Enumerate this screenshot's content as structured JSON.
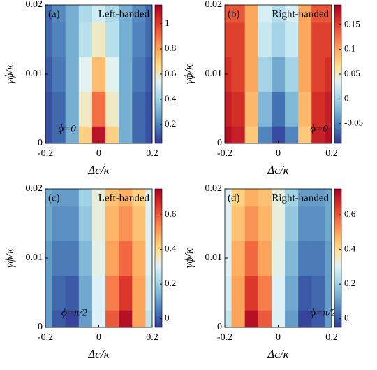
{
  "chart_data": [
    {
      "type": "heatmap",
      "panel_label": "(a)",
      "title": "Left-handed",
      "annotation": "ϕ=0",
      "x_label": "Δc/κ",
      "y_label": "γϕ/κ",
      "x": [
        -0.2,
        -0.15,
        -0.1,
        -0.05,
        0,
        0.05,
        0.1,
        0.15,
        0.2
      ],
      "y": [
        0,
        0.005,
        0.01,
        0.015,
        0.02
      ],
      "z": [
        [
          0.1,
          0.15,
          0.3,
          0.7,
          1.1,
          0.7,
          0.3,
          0.15,
          0.1
        ],
        [
          0.1,
          0.15,
          0.3,
          0.6,
          0.9,
          0.6,
          0.3,
          0.15,
          0.1
        ],
        [
          0.12,
          0.18,
          0.3,
          0.55,
          0.75,
          0.55,
          0.3,
          0.18,
          0.12
        ],
        [
          0.15,
          0.2,
          0.3,
          0.45,
          0.6,
          0.45,
          0.3,
          0.2,
          0.15
        ],
        [
          0.15,
          0.22,
          0.3,
          0.42,
          0.5,
          0.42,
          0.3,
          0.22,
          0.15
        ]
      ],
      "xlim": [
        -0.2,
        0.2
      ],
      "xticks": [
        -0.2,
        0,
        0.2
      ],
      "ylim": [
        0,
        0.02
      ],
      "yticks": [
        0,
        0.01,
        0.02
      ],
      "zlim": [
        0.05,
        1.15
      ],
      "zticks": [
        0.2,
        0.4,
        0.6,
        0.8,
        1
      ],
      "colormap": [
        "#313695",
        "#4575b4",
        "#74add1",
        "#abd9e9",
        "#e0f3f8",
        "#fee090",
        "#fdae61",
        "#f46d43",
        "#d73027",
        "#a50026"
      ]
    },
    {
      "type": "heatmap",
      "panel_label": "(b)",
      "title": "Right-handed",
      "annotation": "ϕ=0",
      "x_label": "Δc/κ",
      "y_label": "γϕ/κ",
      "x": [
        -0.2,
        -0.15,
        -0.1,
        -0.05,
        0,
        0.05,
        0.1,
        0.15,
        0.2
      ],
      "y": [
        0,
        0.005,
        0.01,
        0.015,
        0.02
      ],
      "z": [
        [
          0.18,
          0.17,
          0.08,
          -0.05,
          -0.08,
          -0.05,
          0.08,
          0.17,
          0.18
        ],
        [
          0.17,
          0.16,
          0.09,
          -0.02,
          -0.06,
          -0.02,
          0.09,
          0.16,
          0.17
        ],
        [
          0.16,
          0.15,
          0.1,
          0,
          -0.03,
          0,
          0.1,
          0.15,
          0.16
        ],
        [
          0.15,
          0.15,
          0.1,
          0.02,
          0,
          0.02,
          0.1,
          0.15,
          0.15
        ],
        [
          0.14,
          0.14,
          0.1,
          0.03,
          0.01,
          0.03,
          0.1,
          0.14,
          0.14
        ]
      ],
      "xlim": [
        -0.2,
        0.2
      ],
      "xticks": [
        -0.2,
        0,
        0.2
      ],
      "ylim": [
        0,
        0.02
      ],
      "yticks": [
        0,
        0.01,
        0.02
      ],
      "zlim": [
        -0.09,
        0.19
      ],
      "zticks": [
        -0.05,
        0,
        0.05,
        0.1,
        0.15
      ],
      "colormap": [
        "#313695",
        "#4575b4",
        "#74add1",
        "#abd9e9",
        "#e0f3f8",
        "#fee090",
        "#fdae61",
        "#f46d43",
        "#d73027",
        "#a50026"
      ]
    },
    {
      "type": "heatmap",
      "panel_label": "(c)",
      "title": "Left-handed",
      "annotation": "ϕ=π/2",
      "x_label": "Δc/κ",
      "y_label": "γϕ/κ",
      "x": [
        -0.2,
        -0.15,
        -0.1,
        -0.05,
        0,
        0.05,
        0.1,
        0.15,
        0.2
      ],
      "y": [
        0,
        0.005,
        0.01,
        0.015,
        0.02
      ],
      "z": [
        [
          0.1,
          0,
          -0.03,
          0.1,
          0.3,
          0.6,
          0.72,
          0.5,
          0.25
        ],
        [
          0.1,
          0.02,
          0,
          0.12,
          0.3,
          0.55,
          0.65,
          0.5,
          0.28
        ],
        [
          0.1,
          0.05,
          0.05,
          0.15,
          0.32,
          0.5,
          0.58,
          0.48,
          0.3
        ],
        [
          0.12,
          0.08,
          0.08,
          0.18,
          0.33,
          0.47,
          0.52,
          0.45,
          0.3
        ],
        [
          0.12,
          0.1,
          0.1,
          0.2,
          0.33,
          0.45,
          0.48,
          0.42,
          0.3
        ]
      ],
      "xlim": [
        -0.2,
        0.2
      ],
      "xticks": [
        -0.2,
        0,
        0.2
      ],
      "ylim": [
        0,
        0.02
      ],
      "yticks": [
        0,
        0.01,
        0.02
      ],
      "zlim": [
        -0.05,
        0.75
      ],
      "zticks": [
        0,
        0.2,
        0.4,
        0.6
      ],
      "colormap": [
        "#313695",
        "#4575b4",
        "#74add1",
        "#abd9e9",
        "#e0f3f8",
        "#fee090",
        "#fdae61",
        "#f46d43",
        "#d73027",
        "#a50026"
      ]
    },
    {
      "type": "heatmap",
      "panel_label": "(d)",
      "title": "Right-handed",
      "annotation": "ϕ=π/2",
      "x_label": "Δc/κ",
      "y_label": "γϕ/κ",
      "x": [
        -0.2,
        -0.15,
        -0.1,
        -0.05,
        0,
        0.05,
        0.1,
        0.15,
        0.2
      ],
      "y": [
        0,
        0.005,
        0.01,
        0.015,
        0.02
      ],
      "z": [
        [
          0.25,
          0.5,
          0.72,
          0.6,
          0.3,
          0.1,
          -0.03,
          0,
          0.1
        ],
        [
          0.28,
          0.5,
          0.65,
          0.55,
          0.3,
          0.12,
          0,
          0.02,
          0.1
        ],
        [
          0.3,
          0.48,
          0.58,
          0.5,
          0.32,
          0.15,
          0.05,
          0.05,
          0.1
        ],
        [
          0.3,
          0.45,
          0.52,
          0.47,
          0.33,
          0.18,
          0.08,
          0.08,
          0.12
        ],
        [
          0.3,
          0.42,
          0.48,
          0.45,
          0.33,
          0.2,
          0.1,
          0.1,
          0.12
        ]
      ],
      "xlim": [
        -0.2,
        0.2
      ],
      "xticks": [
        -0.2,
        0,
        0.2
      ],
      "ylim": [
        0,
        0.02
      ],
      "yticks": [
        0,
        0.01,
        0.02
      ],
      "zlim": [
        -0.05,
        0.75
      ],
      "zticks": [
        0,
        0.2,
        0.4,
        0.6
      ],
      "colormap": [
        "#313695",
        "#4575b4",
        "#74add1",
        "#abd9e9",
        "#e0f3f8",
        "#fee090",
        "#fdae61",
        "#f46d43",
        "#d73027",
        "#a50026"
      ]
    }
  ]
}
